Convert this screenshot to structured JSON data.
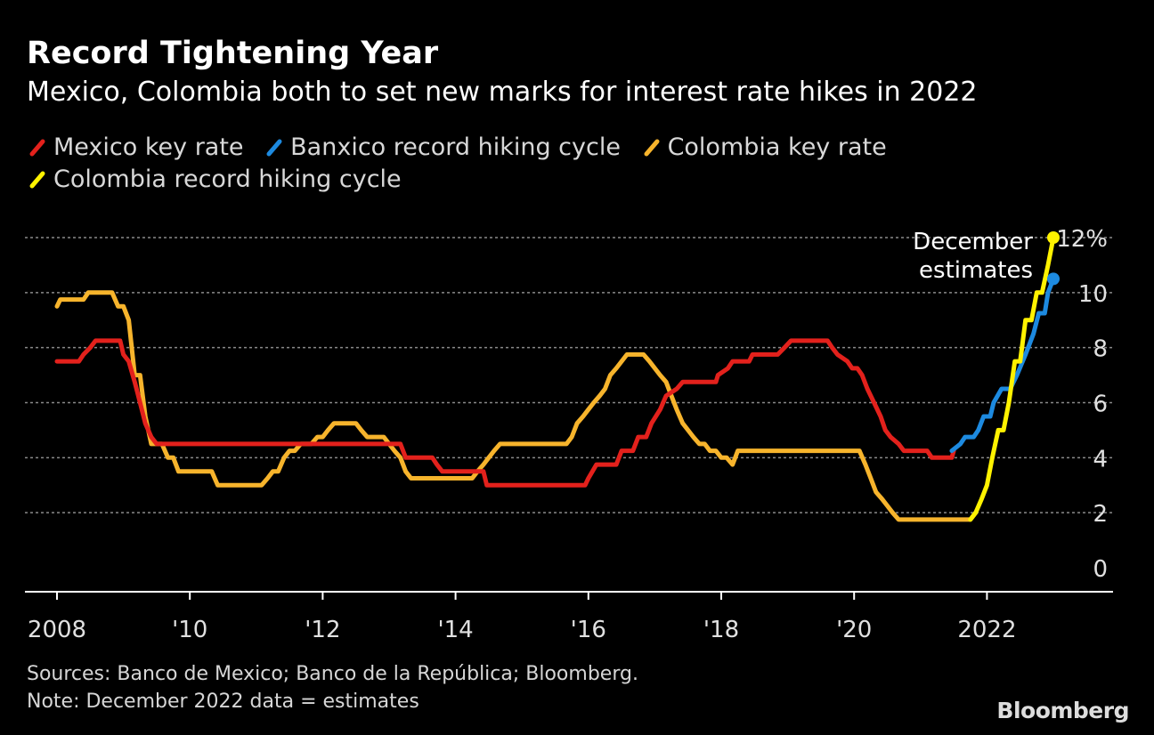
{
  "header": {
    "title": "Record Tightening Year",
    "subtitle": "Mexico, Colombia both to set new marks for interest rate hikes in 2022"
  },
  "legend": [
    {
      "label": "Mexico key rate",
      "color": "#e3211c"
    },
    {
      "label": "Banxico record hiking cycle",
      "color": "#1d8ae0"
    },
    {
      "label": "Colombia key rate",
      "color": "#f7b42c"
    },
    {
      "label": "Colombia record hiking cycle",
      "color": "#fff200"
    }
  ],
  "footer": {
    "sources": "Sources: Banco de Mexico; Banco de la República; Bloomberg.",
    "note": "Note: December 2022 data = estimates",
    "brand": "Bloomberg"
  },
  "chart_data": {
    "type": "line",
    "title": "Record Tightening Year",
    "subtitle": "Mexico, Colombia both to set new marks for interest rate hikes in 2022",
    "xlabel": "",
    "ylabel": "",
    "xlim": [
      2007.5,
      2023.8
    ],
    "ylim": [
      -0.8,
      12.6
    ],
    "y_ticks": [
      {
        "value": 0,
        "label": "0"
      },
      {
        "value": 2,
        "label": "2"
      },
      {
        "value": 4,
        "label": "4"
      },
      {
        "value": 6,
        "label": "6"
      },
      {
        "value": 8,
        "label": "8"
      },
      {
        "value": 10,
        "label": "10"
      },
      {
        "value": 12,
        "label": "12%"
      }
    ],
    "x_ticks": [
      {
        "value": 2008,
        "label": "2008"
      },
      {
        "value": 2010,
        "label": "'10"
      },
      {
        "value": 2012,
        "label": "'12"
      },
      {
        "value": 2014,
        "label": "'14"
      },
      {
        "value": 2016,
        "label": "'16"
      },
      {
        "value": 2018,
        "label": "'18"
      },
      {
        "value": 2020,
        "label": "'20"
      },
      {
        "value": 2022,
        "label": "2022"
      }
    ],
    "grid": true,
    "annotation": {
      "line1": "December",
      "line2": "estimates"
    },
    "series": [
      {
        "name": "Mexico key rate",
        "color": "#e3211c",
        "points": [
          [
            2008.0,
            7.5
          ],
          [
            2008.33,
            7.5
          ],
          [
            2008.4,
            7.75
          ],
          [
            2008.5,
            8.0
          ],
          [
            2008.58,
            8.25
          ],
          [
            2008.95,
            8.25
          ],
          [
            2009.0,
            7.75
          ],
          [
            2009.08,
            7.5
          ],
          [
            2009.17,
            6.75
          ],
          [
            2009.25,
            6.0
          ],
          [
            2009.33,
            5.25
          ],
          [
            2009.42,
            4.75
          ],
          [
            2009.5,
            4.5
          ],
          [
            2013.17,
            4.5
          ],
          [
            2013.25,
            4.0
          ],
          [
            2013.65,
            4.0
          ],
          [
            2013.72,
            3.75
          ],
          [
            2013.8,
            3.5
          ],
          [
            2014.42,
            3.5
          ],
          [
            2014.47,
            3.0
          ],
          [
            2015.95,
            3.0
          ],
          [
            2016.0,
            3.25
          ],
          [
            2016.12,
            3.75
          ],
          [
            2016.42,
            3.75
          ],
          [
            2016.5,
            4.25
          ],
          [
            2016.67,
            4.25
          ],
          [
            2016.75,
            4.75
          ],
          [
            2016.87,
            4.75
          ],
          [
            2016.95,
            5.25
          ],
          [
            2017.08,
            5.75
          ],
          [
            2017.17,
            6.25
          ],
          [
            2017.33,
            6.5
          ],
          [
            2017.42,
            6.75
          ],
          [
            2017.92,
            6.75
          ],
          [
            2017.95,
            7.0
          ],
          [
            2018.1,
            7.25
          ],
          [
            2018.17,
            7.5
          ],
          [
            2018.42,
            7.5
          ],
          [
            2018.47,
            7.75
          ],
          [
            2018.85,
            7.75
          ],
          [
            2018.95,
            8.0
          ],
          [
            2019.05,
            8.25
          ],
          [
            2019.6,
            8.25
          ],
          [
            2019.67,
            8.0
          ],
          [
            2019.75,
            7.75
          ],
          [
            2019.9,
            7.5
          ],
          [
            2019.97,
            7.25
          ],
          [
            2020.05,
            7.25
          ],
          [
            2020.12,
            7.0
          ],
          [
            2020.2,
            6.5
          ],
          [
            2020.3,
            6.0
          ],
          [
            2020.4,
            5.5
          ],
          [
            2020.47,
            5.0
          ],
          [
            2020.55,
            4.75
          ],
          [
            2020.67,
            4.5
          ],
          [
            2020.75,
            4.25
          ],
          [
            2021.1,
            4.25
          ],
          [
            2021.17,
            4.0
          ],
          [
            2021.47,
            4.0
          ],
          [
            2021.5,
            4.25
          ]
        ]
      },
      {
        "name": "Banxico record hiking cycle",
        "color": "#1d8ae0",
        "points": [
          [
            2021.47,
            4.25
          ],
          [
            2021.6,
            4.5
          ],
          [
            2021.67,
            4.75
          ],
          [
            2021.8,
            4.75
          ],
          [
            2021.87,
            5.0
          ],
          [
            2021.95,
            5.5
          ],
          [
            2022.05,
            5.5
          ],
          [
            2022.1,
            6.0
          ],
          [
            2022.22,
            6.5
          ],
          [
            2022.35,
            6.5
          ],
          [
            2022.45,
            7.0
          ],
          [
            2022.58,
            7.75
          ],
          [
            2022.7,
            8.5
          ],
          [
            2022.78,
            9.25
          ],
          [
            2022.87,
            9.25
          ],
          [
            2022.92,
            10.0
          ],
          [
            2023.0,
            10.5
          ]
        ]
      },
      {
        "name": "Colombia key rate",
        "color": "#f7b42c",
        "points": [
          [
            2008.0,
            9.5
          ],
          [
            2008.05,
            9.75
          ],
          [
            2008.4,
            9.75
          ],
          [
            2008.47,
            10.0
          ],
          [
            2008.83,
            10.0
          ],
          [
            2008.92,
            9.5
          ],
          [
            2009.0,
            9.5
          ],
          [
            2009.08,
            9.0
          ],
          [
            2009.17,
            7.0
          ],
          [
            2009.25,
            7.0
          ],
          [
            2009.33,
            5.5
          ],
          [
            2009.42,
            4.5
          ],
          [
            2009.58,
            4.5
          ],
          [
            2009.67,
            4.0
          ],
          [
            2009.75,
            4.0
          ],
          [
            2009.83,
            3.5
          ],
          [
            2010.33,
            3.5
          ],
          [
            2010.42,
            3.0
          ],
          [
            2011.08,
            3.0
          ],
          [
            2011.17,
            3.25
          ],
          [
            2011.25,
            3.5
          ],
          [
            2011.33,
            3.5
          ],
          [
            2011.42,
            4.0
          ],
          [
            2011.5,
            4.25
          ],
          [
            2011.58,
            4.25
          ],
          [
            2011.67,
            4.5
          ],
          [
            2011.83,
            4.5
          ],
          [
            2011.92,
            4.75
          ],
          [
            2012.0,
            4.75
          ],
          [
            2012.08,
            5.0
          ],
          [
            2012.17,
            5.25
          ],
          [
            2012.5,
            5.25
          ],
          [
            2012.58,
            5.0
          ],
          [
            2012.67,
            4.75
          ],
          [
            2012.92,
            4.75
          ],
          [
            2013.0,
            4.5
          ],
          [
            2013.08,
            4.25
          ],
          [
            2013.17,
            4.0
          ],
          [
            2013.25,
            3.5
          ],
          [
            2013.33,
            3.25
          ],
          [
            2014.25,
            3.25
          ],
          [
            2014.33,
            3.5
          ],
          [
            2014.42,
            3.75
          ],
          [
            2014.5,
            4.0
          ],
          [
            2014.58,
            4.25
          ],
          [
            2014.67,
            4.5
          ],
          [
            2015.67,
            4.5
          ],
          [
            2015.75,
            4.75
          ],
          [
            2015.83,
            5.25
          ],
          [
            2015.92,
            5.5
          ],
          [
            2016.0,
            5.75
          ],
          [
            2016.08,
            6.0
          ],
          [
            2016.17,
            6.25
          ],
          [
            2016.25,
            6.5
          ],
          [
            2016.33,
            7.0
          ],
          [
            2016.42,
            7.25
          ],
          [
            2016.5,
            7.5
          ],
          [
            2016.58,
            7.75
          ],
          [
            2016.83,
            7.75
          ],
          [
            2016.92,
            7.5
          ],
          [
            2017.0,
            7.25
          ],
          [
            2017.08,
            7.0
          ],
          [
            2017.17,
            6.75
          ],
          [
            2017.25,
            6.25
          ],
          [
            2017.33,
            5.75
          ],
          [
            2017.42,
            5.25
          ],
          [
            2017.5,
            5.0
          ],
          [
            2017.58,
            4.75
          ],
          [
            2017.67,
            4.5
          ],
          [
            2017.75,
            4.5
          ],
          [
            2017.83,
            4.25
          ],
          [
            2017.92,
            4.25
          ],
          [
            2018.0,
            4.0
          ],
          [
            2018.08,
            4.0
          ],
          [
            2018.17,
            3.75
          ],
          [
            2018.25,
            4.25
          ],
          [
            2020.08,
            4.25
          ],
          [
            2020.17,
            3.75
          ],
          [
            2020.25,
            3.25
          ],
          [
            2020.33,
            2.75
          ],
          [
            2020.42,
            2.5
          ],
          [
            2020.5,
            2.25
          ],
          [
            2020.58,
            2.0
          ],
          [
            2020.67,
            1.75
          ],
          [
            2021.75,
            1.75
          ],
          [
            2021.83,
            2.0
          ]
        ]
      },
      {
        "name": "Colombia record hiking cycle",
        "color": "#fff200",
        "points": [
          [
            2021.75,
            1.75
          ],
          [
            2021.83,
            2.0
          ],
          [
            2021.92,
            2.5
          ],
          [
            2022.0,
            3.0
          ],
          [
            2022.08,
            4.0
          ],
          [
            2022.17,
            5.0
          ],
          [
            2022.25,
            5.0
          ],
          [
            2022.33,
            6.0
          ],
          [
            2022.42,
            7.5
          ],
          [
            2022.5,
            7.5
          ],
          [
            2022.58,
            9.0
          ],
          [
            2022.67,
            9.0
          ],
          [
            2022.75,
            10.0
          ],
          [
            2022.83,
            10.0
          ],
          [
            2022.92,
            11.0
          ],
          [
            2023.0,
            12.0
          ]
        ]
      }
    ]
  }
}
